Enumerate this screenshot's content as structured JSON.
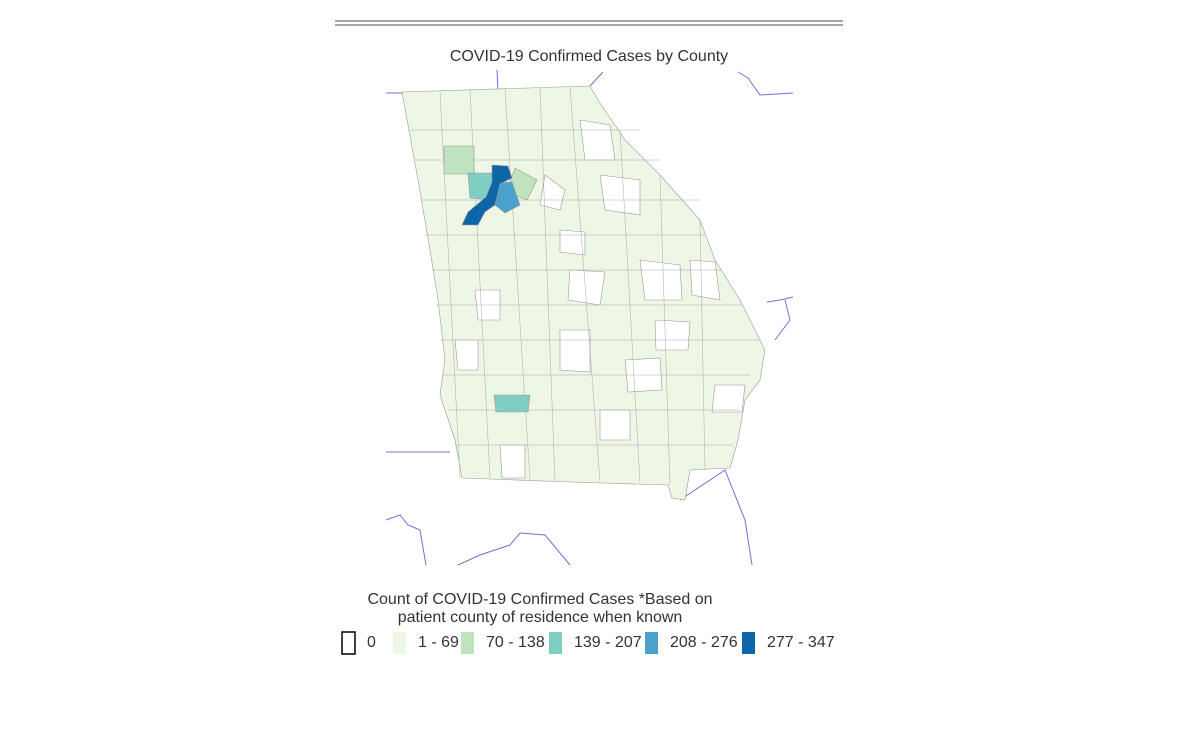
{
  "title": "COVID-19 Confirmed Cases by County",
  "legend": {
    "title_lines": [
      "Count of COVID-19 Confirmed Cases *Based on",
      "patient county of residence when known"
    ],
    "items": [
      {
        "label": "0",
        "color": "#ffffff"
      },
      {
        "label": "1 - 69",
        "color": "#eef6e6"
      },
      {
        "label": "70 - 138",
        "color": "#bfe4bd"
      },
      {
        "label": "139 - 207",
        "color": "#7ecec4"
      },
      {
        "label": "208 - 276",
        "color": "#4ba0cc"
      },
      {
        "label": "277 - 347",
        "color": "#0d66a8"
      }
    ]
  }
}
